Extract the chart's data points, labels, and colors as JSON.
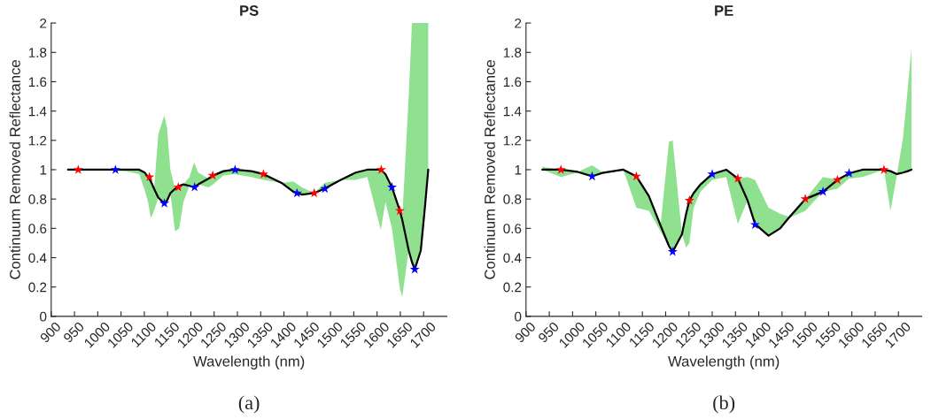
{
  "chart_data": [
    {
      "type": "line",
      "title": "PS",
      "xlabel": "Wavelength (nm)",
      "ylabel": "Continuum Removed Reflectance",
      "annotations": [
        "(a)"
      ],
      "xlim": [
        900,
        1750
      ],
      "xticks": [
        900,
        950,
        1000,
        1050,
        1100,
        1150,
        1200,
        1250,
        1300,
        1350,
        1400,
        1450,
        1500,
        1550,
        1600,
        1650,
        1700
      ],
      "ylim": [
        0,
        2
      ],
      "yticks": [
        0,
        0.2,
        0.4,
        0.6,
        0.8,
        1,
        1.2,
        1.4,
        1.6,
        1.8,
        2
      ],
      "grid": false,
      "legend": false,
      "series": [
        {
          "color": "#000000",
          "marker": "none",
          "line_style": "solid",
          "x": [
            936,
            1000,
            1060,
            1089,
            1101,
            1108,
            1114,
            1121,
            1130,
            1143,
            1149,
            1156,
            1166,
            1175,
            1184,
            1197,
            1207,
            1216,
            1238,
            1248,
            1270,
            1293,
            1330,
            1356,
            1395,
            1420,
            1439,
            1465,
            1487,
            1522,
            1554,
            1579,
            1608,
            1618,
            1632,
            1649,
            1654,
            1668,
            1675,
            1681,
            1694,
            1703,
            1710
          ],
          "values": [
            1.0,
            1.0,
            1.0,
            1.0,
            0.98,
            0.95,
            0.92,
            0.87,
            0.81,
            0.77,
            0.79,
            0.84,
            0.87,
            0.89,
            0.9,
            0.89,
            0.88,
            0.9,
            0.94,
            0.96,
            0.99,
            1.0,
            0.99,
            0.97,
            0.91,
            0.85,
            0.83,
            0.84,
            0.87,
            0.93,
            0.98,
            1.0,
            1.0,
            0.97,
            0.88,
            0.72,
            0.66,
            0.45,
            0.37,
            0.32,
            0.45,
            0.75,
            1.0
          ],
          "lower": [
            1.0,
            1.0,
            0.99,
            0.97,
            0.86,
            0.78,
            0.67,
            0.72,
            0.81,
            0.77,
            0.79,
            0.84,
            0.58,
            0.6,
            0.78,
            0.89,
            0.88,
            0.9,
            0.88,
            0.9,
            0.96,
            0.97,
            0.95,
            0.93,
            0.91,
            0.85,
            0.83,
            0.84,
            0.87,
            0.93,
            0.93,
            0.95,
            0.59,
            0.78,
            0.6,
            0.19,
            0.13,
            0.45,
            0.37,
            0.32,
            0.45,
            0.75,
            1.0
          ],
          "upper": [
            1.0,
            1.0,
            1.0,
            1.0,
            0.98,
            0.95,
            0.92,
            0.87,
            1.24,
            1.37,
            1.28,
            1.0,
            0.87,
            0.89,
            0.9,
            0.95,
            1.05,
            0.98,
            0.94,
            0.96,
            0.99,
            1.0,
            0.99,
            0.97,
            0.91,
            0.92,
            0.88,
            0.84,
            0.91,
            0.93,
            0.98,
            1.0,
            1.0,
            0.97,
            0.88,
            0.72,
            0.66,
            1.5,
            2.0,
            2.0,
            2.0,
            2.0,
            2.0
          ]
        },
        {
          "type": "scatter",
          "color": "#ff0000",
          "marker": "star",
          "x": [
            958,
            1111,
            1173,
            1247,
            1356,
            1465,
            1609,
            1649
          ],
          "values": [
            1.0,
            0.95,
            0.88,
            0.96,
            0.97,
            0.84,
            1.0,
            0.72
          ]
        },
        {
          "type": "scatter",
          "color": "#0000ff",
          "marker": "star",
          "x": [
            1038,
            1143,
            1208,
            1295,
            1428,
            1488,
            1632,
            1681
          ],
          "values": [
            1.0,
            0.77,
            0.88,
            1.0,
            0.84,
            0.87,
            0.88,
            0.32
          ]
        }
      ]
    },
    {
      "type": "line",
      "title": "PE",
      "xlabel": "Wavelength (nm)",
      "ylabel": "Continuum Removed Reflectance",
      "annotations": [
        "(b)"
      ],
      "xlim": [
        900,
        1750
      ],
      "xticks": [
        900,
        950,
        1000,
        1050,
        1100,
        1150,
        1200,
        1250,
        1300,
        1350,
        1400,
        1450,
        1500,
        1550,
        1600,
        1650,
        1700
      ],
      "ylim": [
        0,
        2
      ],
      "yticks": [
        0,
        0.2,
        0.4,
        0.6,
        0.8,
        1,
        1.2,
        1.4,
        1.6,
        1.8,
        2
      ],
      "grid": false,
      "legend": false,
      "series": [
        {
          "color": "#000000",
          "marker": "none",
          "line_style": "solid",
          "x": [
            935,
            975,
            1011,
            1042,
            1066,
            1109,
            1137,
            1164,
            1189,
            1207,
            1215,
            1235,
            1244,
            1251,
            1260,
            1275,
            1300,
            1330,
            1355,
            1376,
            1392,
            1421,
            1446,
            1464,
            1500,
            1538,
            1569,
            1594,
            1623,
            1669,
            1683,
            1697,
            1710,
            1720,
            1728
          ],
          "values": [
            1.0,
            1.0,
            0.985,
            0.955,
            0.98,
            1.0,
            0.955,
            0.82,
            0.62,
            0.48,
            0.44,
            0.56,
            0.7,
            0.79,
            0.84,
            0.9,
            0.97,
            1.0,
            0.94,
            0.79,
            0.63,
            0.55,
            0.6,
            0.67,
            0.8,
            0.85,
            0.93,
            0.975,
            1.0,
            1.0,
            0.99,
            0.97,
            0.98,
            0.99,
            1.0
          ],
          "lower": [
            1.0,
            0.95,
            0.98,
            0.955,
            0.97,
            1.0,
            0.74,
            0.72,
            0.58,
            0.48,
            0.44,
            0.56,
            0.47,
            0.5,
            0.74,
            0.85,
            0.93,
            0.95,
            0.63,
            0.79,
            0.63,
            0.55,
            0.6,
            0.67,
            0.72,
            0.85,
            0.87,
            0.94,
            0.95,
            1.0,
            0.72,
            0.97,
            0.98,
            0.99,
            1.0
          ],
          "upper": [
            1.02,
            1.0,
            0.985,
            1.03,
            0.98,
            1.0,
            0.955,
            0.82,
            0.62,
            1.19,
            1.2,
            0.56,
            0.7,
            0.79,
            0.84,
            0.9,
            0.97,
            1.0,
            0.94,
            0.95,
            0.93,
            0.74,
            0.7,
            0.68,
            0.8,
            0.95,
            0.93,
            0.975,
            1.0,
            1.0,
            0.99,
            0.97,
            1.22,
            1.55,
            1.83
          ]
        },
        {
          "type": "scatter",
          "color": "#ff0000",
          "marker": "star",
          "x": [
            975,
            1137,
            1251,
            1355,
            1500,
            1569,
            1669
          ],
          "values": [
            1.0,
            0.955,
            0.79,
            0.94,
            0.8,
            0.93,
            1.0
          ]
        },
        {
          "type": "scatter",
          "color": "#0000ff",
          "marker": "star",
          "x": [
            1042,
            1215,
            1300,
            1392,
            1538,
            1594
          ],
          "values": [
            0.955,
            0.44,
            0.97,
            0.625,
            0.85,
            0.975
          ]
        }
      ]
    }
  ]
}
